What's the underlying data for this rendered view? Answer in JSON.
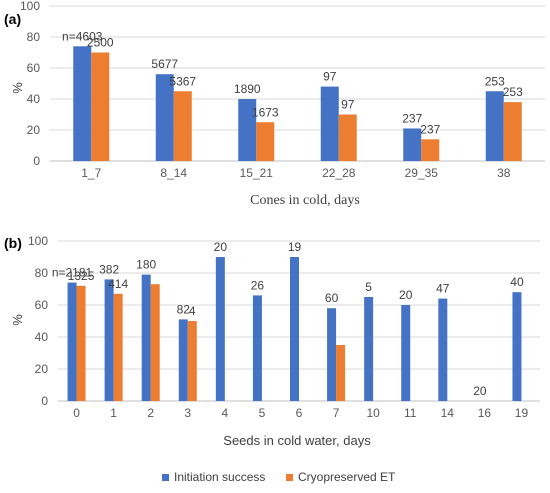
{
  "chart_data": [
    {
      "type": "bar",
      "panel_label": "(a)",
      "xlabel": "Cones in cold, days",
      "ylabel": "%",
      "ylim": [
        0,
        100
      ],
      "yticks": [
        0,
        20,
        40,
        60,
        80,
        100
      ],
      "categories": [
        "1_7",
        "8_14",
        "15_21",
        "22_28",
        "29_35",
        "38"
      ],
      "series": [
        {
          "name": "Initiation success",
          "color": "#4472C4",
          "values": [
            74,
            56,
            40,
            48,
            21,
            45
          ],
          "labels": [
            "n=4603",
            "5677",
            "1890",
            "97",
            "237",
            "253"
          ]
        },
        {
          "name": "Cryopreserved ET",
          "color": "#ED7D31",
          "values": [
            70,
            45,
            25,
            30,
            14,
            38
          ],
          "labels": [
            "2500",
            "5367",
            "1673",
            "97",
            "237",
            "253"
          ]
        }
      ]
    },
    {
      "type": "bar",
      "panel_label": "(b)",
      "xlabel": "Seeds in cold water, days",
      "ylabel": "%",
      "ylim": [
        0,
        100
      ],
      "yticks": [
        0,
        20,
        40,
        60,
        80,
        100
      ],
      "categories": [
        "0",
        "1",
        "2",
        "3",
        "4",
        "5",
        "6",
        "7",
        "10",
        "11",
        "14",
        "16",
        "19"
      ],
      "series": [
        {
          "name": "Initiation success",
          "color": "#4472C4",
          "values": [
            74,
            76,
            79,
            51,
            90,
            66,
            90,
            58,
            65,
            60,
            64,
            0,
            68
          ],
          "labels": [
            "n=2181",
            "382",
            "180",
            "82",
            "20",
            "26",
            "19",
            "60",
            "5",
            "20",
            "47",
            "20",
            "40"
          ]
        },
        {
          "name": "Cryopreserved ET",
          "color": "#ED7D31",
          "values": [
            72,
            67,
            73,
            50,
            null,
            null,
            null,
            35,
            null,
            null,
            null,
            null,
            null
          ],
          "labels": [
            "1325",
            "414",
            "",
            "4",
            "",
            "",
            "",
            "",
            "",
            "",
            "",
            "",
            ""
          ]
        }
      ]
    }
  ],
  "legend": {
    "placement": "bottom",
    "items": [
      {
        "label": "Initiation success",
        "color": "#4472C4"
      },
      {
        "label": "Cryopreserved ET",
        "color": "#ED7D31"
      }
    ]
  }
}
